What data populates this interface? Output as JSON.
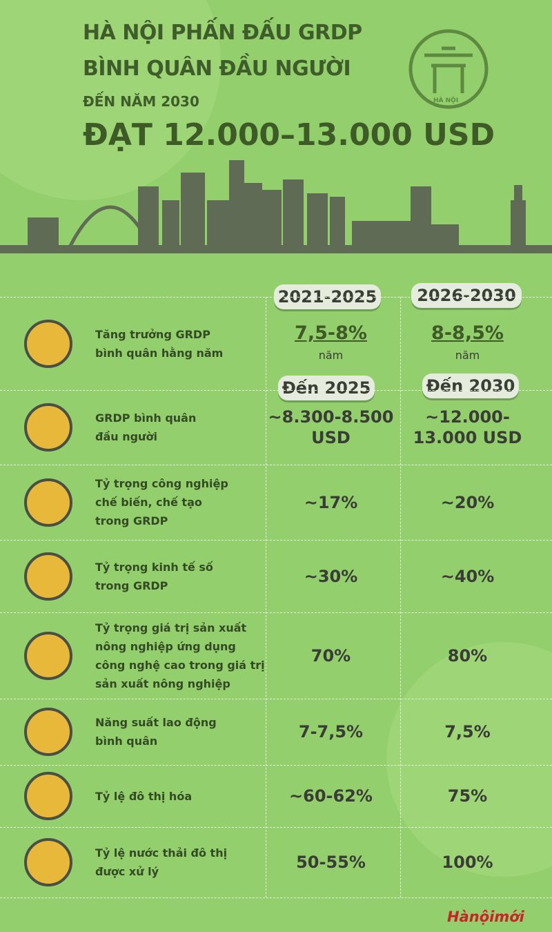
{
  "header": {
    "title_lines": [
      "HÀ NỘI PHẤN ĐẤU GRDP",
      "BÌNH QUÂN ĐẦU NGƯỜI"
    ],
    "subtitle": "ĐẾN NĂM 2030",
    "headline": "ĐẠT 12.000–13.000 USD",
    "logo_text": "HÀ NỘI"
  },
  "table": {
    "columns": [
      "2021-2025",
      "2026-2030"
    ],
    "subcolumns": [
      "Đến 2025",
      "Đến 2030"
    ],
    "rows": [
      {
        "label_lines": [
          "Tăng trưởng GRDP",
          "bình quân hằng năm"
        ],
        "values": [
          "7,5-8%",
          "8-8,5%"
        ],
        "units": [
          "năm",
          "năm"
        ]
      },
      {
        "label_lines": [
          "GRDP bình quân",
          "đầu người"
        ],
        "values": [
          "~8.300-8.500 USD",
          "~12.000-13.000 USD"
        ]
      },
      {
        "label_lines": [
          "Tỷ trọng công nghiệp",
          "chế biến, chế tạo",
          "trong GRDP"
        ],
        "values": [
          "~17%",
          "~20%"
        ]
      },
      {
        "label_lines": [
          "Tỷ trọng kinh tế số",
          "trong GRDP"
        ],
        "values": [
          "~30%",
          "~40%"
        ]
      },
      {
        "label_lines": [
          "Tỷ trọng giá trị sản xuất",
          "nông nghiệp ứng dụng",
          "công nghệ cao trong giá trị",
          "sản xuất nông nghiệp"
        ],
        "values": [
          "70%",
          "80%"
        ]
      },
      {
        "label_lines": [
          "Năng suất lao động",
          "bình quân"
        ],
        "values": [
          "7-7,5%",
          "7,5%"
        ]
      },
      {
        "label_lines": [
          "Tỷ lệ đô thị hóa"
        ],
        "values": [
          "~60-62%",
          "75%"
        ]
      },
      {
        "label_lines": [
          "Tỷ lệ nước thải đô thị",
          "được xử lý"
        ],
        "values": [
          "50-55%",
          "100%"
        ]
      }
    ]
  },
  "footer": {
    "brand": "Hànộimới"
  }
}
